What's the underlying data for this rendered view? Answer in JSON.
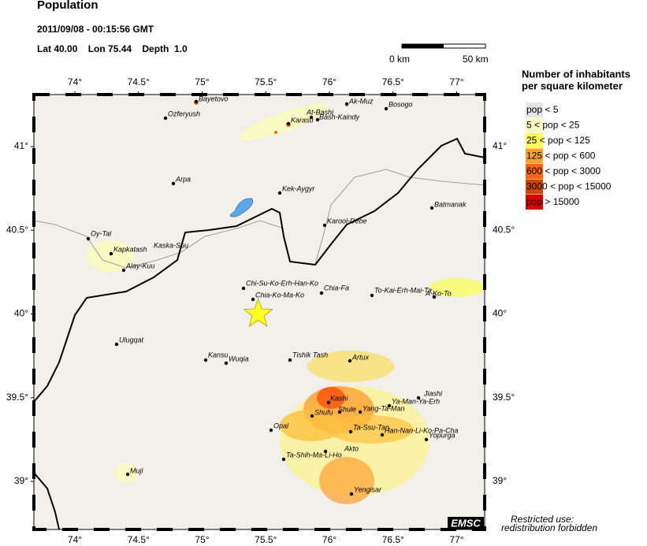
{
  "header": {
    "title": "Population",
    "datetime": "2011/09/08 - 00:15:56 GMT",
    "location": "Lat 40.00    Lon 75.44    Depth  1.0"
  },
  "scale": {
    "start": "0 km",
    "end": "50 km"
  },
  "legend": {
    "title_line1": "Number of inhabitants",
    "title_line2": "per square kilometer",
    "entries": [
      {
        "label": "pop < 5",
        "color": "#e4e4e4"
      },
      {
        "label": "5 < pop < 25",
        "color": "#fafac4"
      },
      {
        "label": "25 < pop < 125",
        "color": "#fafa5a"
      },
      {
        "label": "125 < pop < 600",
        "color": "#fca032"
      },
      {
        "label": "600 < pop < 3000",
        "color": "#fa6414"
      },
      {
        "label": "3000 < pop < 15000",
        "color": "#c84800"
      },
      {
        "label": "pop > 15000",
        "color": "#dc0000"
      }
    ]
  },
  "map": {
    "xticks": [
      {
        "value": 74,
        "label": "74°"
      },
      {
        "value": 74.5,
        "label": "74.5°"
      },
      {
        "value": 75,
        "label": "75°"
      },
      {
        "value": 75.5,
        "label": "75.5°"
      },
      {
        "value": 76,
        "label": "76°"
      },
      {
        "value": 76.5,
        "label": "76.5°"
      },
      {
        "value": 77,
        "label": "77°"
      }
    ],
    "yticks": [
      {
        "value": 41,
        "label": "41°"
      },
      {
        "value": 40.5,
        "label": "40.5°"
      },
      {
        "value": 40,
        "label": "40°"
      },
      {
        "value": 39.5,
        "label": "39.5°"
      },
      {
        "value": 39,
        "label": "39°"
      }
    ],
    "cities": [
      "Bayetovo",
      "Ozferyush",
      "Ak-Muz",
      "Bosogo",
      "At-Bashi",
      "Bash-Kaindy",
      "Karasu",
      "Arpa",
      "Kek-Aygyr",
      "Batmanak",
      "Karool-Debe",
      "Oy-Tal",
      "Kaska-Suu",
      "Kapkatash",
      "Alay-Kuu",
      "Chi-Su-Ko-Erh-Han-Ko",
      "Chia-Fa",
      "To-Kai-Erh-Mai-Ta",
      "A-Ko-To",
      "Chia-Ko-Ma-Ko",
      "Ulugqat",
      "Kansu",
      "Wuqia",
      "Tishik Tash",
      "Artux",
      "Kashi",
      "Jiashi",
      "Ya-Man-Ya-Erh",
      "Shule",
      "Yang-Ta-Man",
      "Shufu",
      "Opal",
      "Ta-Ssu-Tan",
      "Han-Nan-Li-Ko-Pa-Cha",
      "Yopurga",
      "Akto",
      "Ta-Shih-Ma-Li-Ho",
      "Muji",
      "Yengisar"
    ]
  },
  "badge": "EMSC",
  "notice": {
    "line1": "Restricted use:",
    "line2": "redistribution forbidden"
  }
}
